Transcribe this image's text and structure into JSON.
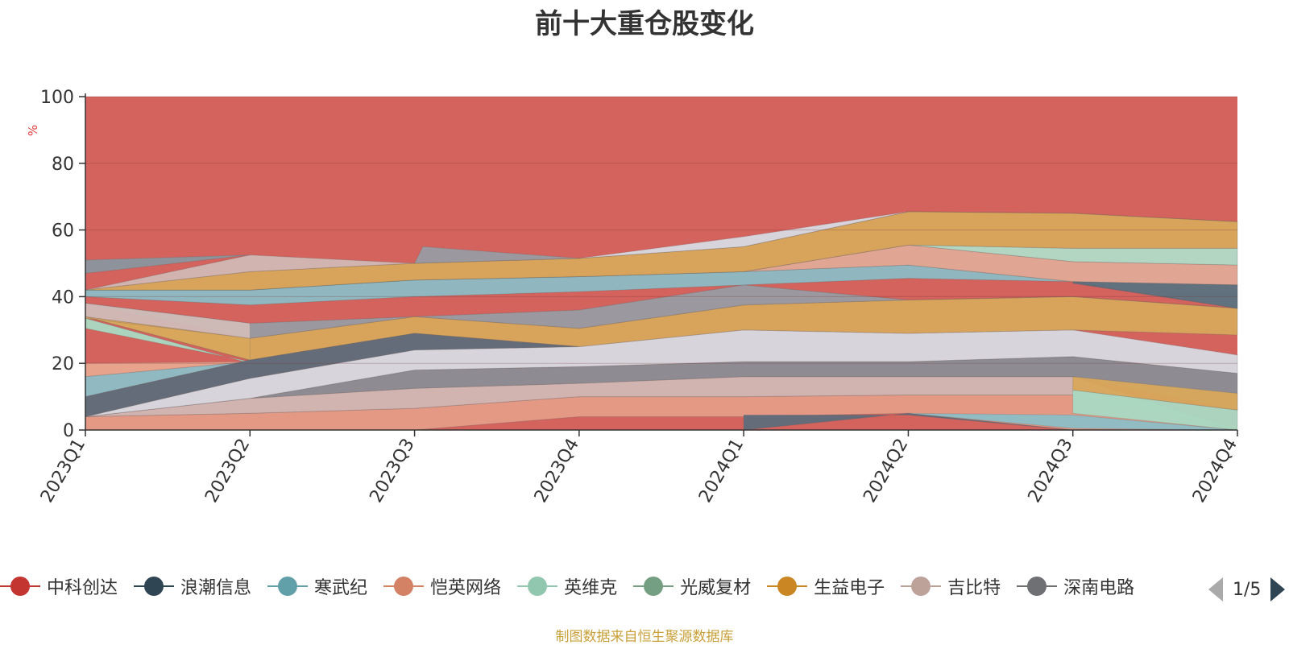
{
  "chart_data": {
    "type": "area",
    "title": "前十大重仓股变化",
    "ylabel": "%",
    "ylim": [
      0,
      100
    ],
    "yticks": [
      0,
      20,
      40,
      60,
      80,
      100
    ],
    "categories": [
      "2023Q1",
      "2023Q2",
      "2023Q3",
      "2023Q4",
      "2024Q1",
      "2024Q2",
      "2024Q3",
      "2024Q4"
    ],
    "bands": [
      {
        "color": "#e6a08a",
        "opacity": 0.9,
        "lower": [
          0,
          0,
          0,
          4,
          4,
          5,
          0,
          0
        ],
        "upper": [
          4,
          5,
          6.5,
          10,
          10,
          10.5,
          10.5,
          0
        ]
      },
      {
        "color": "#d0bcb8",
        "opacity": 0.9,
        "lower": [
          4,
          5,
          6.5,
          10,
          10,
          10.5,
          10.5,
          0
        ],
        "upper": [
          4,
          9.5,
          12.5,
          14,
          16,
          16,
          16,
          0
        ]
      },
      {
        "color": "#869198",
        "opacity": 0.9,
        "lower": [
          4,
          9.5,
          12.5,
          14,
          16,
          16,
          16,
          6
        ],
        "upper": [
          4,
          9.5,
          18,
          19,
          20.5,
          20.5,
          22,
          17
        ]
      },
      {
        "color": "#d7dae1",
        "opacity": 0.95,
        "lower": [
          4,
          9.5,
          18,
          19,
          20.5,
          20.5,
          22,
          17
        ],
        "upper": [
          4,
          15.5,
          24,
          25,
          30,
          29,
          30,
          22.5
        ]
      },
      {
        "color": "#d8a85c",
        "opacity": 0.95,
        "lower": [
          34,
          21,
          29,
          25,
          30,
          29,
          30,
          28.5
        ],
        "upper": [
          34,
          27.5,
          34,
          30.5,
          37.5,
          39,
          40,
          36.5
        ]
      },
      {
        "color": "#989ca2",
        "opacity": 0.95,
        "lower": [
          38,
          27.5,
          34,
          30.5,
          37.5,
          39,
          40,
          36.5
        ],
        "upper": [
          38,
          32,
          34,
          36,
          43.5,
          39,
          40,
          36.5
        ]
      },
      {
        "color": "#8cbcc4",
        "opacity": 0.95,
        "lower": [
          40,
          37.5,
          40,
          41.5,
          43.5,
          45.5,
          44.5,
          36.5
        ],
        "upper": [
          42,
          42,
          45,
          46,
          47.5,
          49.5,
          44.5,
          43.5
        ]
      },
      {
        "color": "#e0aa96",
        "opacity": 0.95,
        "lower": [
          42,
          42,
          45,
          46,
          47.5,
          49.5,
          44.5,
          43.5
        ],
        "upper": [
          42,
          42,
          45,
          46,
          47.5,
          55.5,
          50.5,
          49.5
        ]
      },
      {
        "color": "#b1dcc7",
        "opacity": 0.95,
        "lower": [
          42,
          42,
          45,
          46,
          47.5,
          55.5,
          50.5,
          49.5
        ],
        "upper": [
          42,
          42,
          45,
          46,
          47.5,
          55.5,
          54.5,
          54.5
        ]
      },
      {
        "color": "#d8a85c",
        "opacity": 0.95,
        "lower": [
          42,
          42,
          45,
          46,
          47.5,
          55.5,
          54.5,
          54.5
        ],
        "upper": [
          42,
          47.5,
          50,
          51.5,
          55,
          65.5,
          65,
          62.5
        ]
      },
      {
        "color": "#d0bcb8",
        "opacity": 0.9,
        "lower": [
          42,
          47.5,
          50,
          51.5,
          55,
          65.5,
          65,
          62.5
        ],
        "upper": [
          42,
          52.5,
          50,
          51.5,
          55,
          65.5,
          65,
          62.5
        ]
      }
    ],
    "highlights": [
      {
        "color": "#a9d9c2",
        "points": [
          [
            0,
            30.5
          ],
          [
            1,
            20.5
          ],
          [
            1,
            20
          ],
          [
            0,
            33.5
          ]
        ]
      },
      {
        "color": "#e9a78f",
        "points": [
          [
            0,
            20
          ],
          [
            1,
            20.5
          ],
          [
            0,
            16
          ]
        ]
      },
      {
        "color": "#8dbec6",
        "points": [
          [
            0,
            16
          ],
          [
            1,
            20.5
          ],
          [
            1,
            21
          ],
          [
            0,
            10
          ]
        ]
      },
      {
        "color": "#5f6d7a",
        "points": [
          [
            0,
            10
          ],
          [
            1,
            21
          ],
          [
            2,
            29
          ],
          [
            3,
            25
          ],
          [
            2,
            24
          ],
          [
            1,
            15.5
          ],
          [
            0,
            4
          ]
        ]
      },
      {
        "color": "#d8a85c",
        "points": [
          [
            0,
            33.5
          ],
          [
            1,
            27.5
          ],
          [
            1,
            21
          ],
          [
            0,
            34
          ]
        ]
      },
      {
        "color": "#d0bcb8",
        "points": [
          [
            0,
            38
          ],
          [
            1,
            32
          ],
          [
            1,
            27.5
          ],
          [
            0,
            34
          ]
        ]
      },
      {
        "color": "#8a969e",
        "points": [
          [
            0,
            51
          ],
          [
            1,
            52.5
          ],
          [
            0,
            47
          ]
        ]
      },
      {
        "color": "#989ca2",
        "points": [
          [
            2,
            50
          ],
          [
            2.05,
            55
          ],
          [
            3,
            51.5
          ]
        ]
      },
      {
        "color": "#5f6d7a",
        "points": [
          [
            4,
            0
          ],
          [
            5,
            5
          ],
          [
            6,
            0
          ],
          [
            5,
            4.5
          ],
          [
            4,
            4.5
          ]
        ]
      },
      {
        "color": "#8dbec6",
        "points": [
          [
            5,
            5
          ],
          [
            6,
            0.5
          ],
          [
            7,
            0
          ],
          [
            6,
            4.5
          ]
        ]
      },
      {
        "color": "#a9d9c2",
        "points": [
          [
            6,
            12
          ],
          [
            7,
            6
          ],
          [
            7,
            0
          ],
          [
            6,
            5
          ]
        ]
      },
      {
        "color": "#d8a85c",
        "points": [
          [
            6,
            16
          ],
          [
            7,
            11
          ],
          [
            7,
            6
          ],
          [
            6,
            12
          ]
        ]
      },
      {
        "color": "#5f6d7a",
        "points": [
          [
            6,
            44.5
          ],
          [
            7,
            43.5
          ],
          [
            7,
            36.5
          ],
          [
            6,
            44
          ]
        ]
      },
      {
        "color": "#d7dae1",
        "points": [
          [
            3,
            51.5
          ],
          [
            4,
            58
          ],
          [
            5,
            65.5
          ],
          [
            4,
            55
          ]
        ]
      }
    ]
  },
  "legend": {
    "items": [
      {
        "label": "中科创达",
        "color": "#c23531"
      },
      {
        "label": "浪潮信息",
        "color": "#2f4554"
      },
      {
        "label": "寒武纪",
        "color": "#61a0a8"
      },
      {
        "label": "恺英网络",
        "color": "#d48265"
      },
      {
        "label": "英维克",
        "color": "#91c7ae"
      },
      {
        "label": "光威复材",
        "color": "#749f83"
      },
      {
        "label": "生益电子",
        "color": "#ca8622"
      },
      {
        "label": "吉比特",
        "color": "#bda29a"
      },
      {
        "label": "深南电路",
        "color": "#6e7074"
      }
    ],
    "page": "1/5"
  },
  "footer": "制图数据来自恒生聚源数据库",
  "colors": {
    "top_band": "#d4625d",
    "axis": "#333333",
    "unit": "#e03b3b"
  }
}
